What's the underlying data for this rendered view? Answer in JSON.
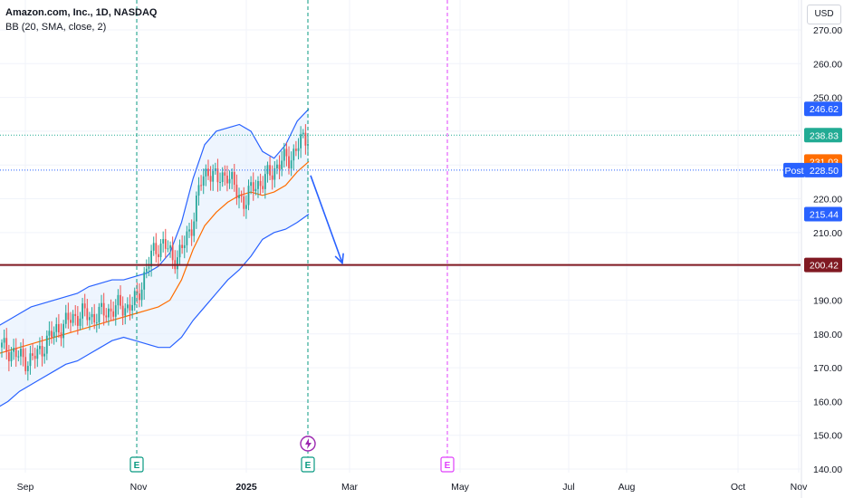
{
  "header": {
    "title": "Amazon.com, Inc., 1D, NASDAQ",
    "indicator": "BB (20, SMA, close, 2)",
    "currency": "USD"
  },
  "colors": {
    "up": "#26a69a",
    "down": "#ef5350",
    "band": "#2962ff",
    "basis": "#ff6d00",
    "band_fill": "#e3effd",
    "support": "#801922",
    "arrow": "#2962ff",
    "earnings_past": "#089981",
    "earnings_future": "#e040fb",
    "last_price": "#22ab94"
  },
  "chart_data": {
    "type": "candlestick",
    "y_range": [
      137,
      275
    ],
    "y_ticks": [
      "270.00",
      "260.00",
      "250.00",
      "240.00",
      "230.00",
      "220.00",
      "210.00",
      "200.00",
      "190.00",
      "180.00",
      "170.00",
      "160.00",
      "150.00",
      "140.00"
    ],
    "y_tick_values": [
      270,
      260,
      250,
      240,
      230,
      220,
      210,
      200,
      190,
      180,
      170,
      160,
      150,
      140
    ],
    "x_ticks": [
      {
        "label": "Sep",
        "bold": false
      },
      {
        "label": "Nov",
        "bold": false
      },
      {
        "label": "2025",
        "bold": true
      },
      {
        "label": "Mar",
        "bold": false
      },
      {
        "label": "May",
        "bold": false
      },
      {
        "label": "Jul",
        "bold": false
      },
      {
        "label": "Aug",
        "bold": false
      },
      {
        "label": "Oct",
        "bold": false
      },
      {
        "label": "Nov",
        "bold": false
      }
    ],
    "price_labels": [
      {
        "value": 246.62,
        "text": "246.62",
        "kind": "upper_band"
      },
      {
        "value": 238.83,
        "text": "238.83",
        "kind": "last_price"
      },
      {
        "value": 231.03,
        "text": "231.03",
        "kind": "basis"
      },
      {
        "value": 228.5,
        "text": "228.50",
        "kind": "post_market"
      },
      {
        "value": 215.44,
        "text": "215.44",
        "kind": "lower_band"
      },
      {
        "value": 200.42,
        "text": "200.42",
        "kind": "support"
      }
    ],
    "post_market_label": "Post",
    "support_level": 200.42,
    "projection": {
      "from_value": 228.5,
      "to_value": 200.42
    },
    "bollinger_upper": [
      182,
      184,
      186,
      188,
      189,
      190,
      191,
      192,
      194,
      195,
      196,
      196,
      197,
      198,
      200,
      204,
      213,
      226,
      236,
      240,
      241,
      242,
      240,
      234,
      232,
      236,
      243,
      246.6
    ],
    "bollinger_basis": [
      174,
      175,
      176,
      177,
      178,
      179,
      180,
      181,
      182,
      183,
      184,
      185,
      186,
      187,
      188,
      190,
      196,
      205,
      212,
      216,
      219,
      221,
      222,
      221,
      222,
      224,
      228,
      231.03
    ],
    "bollinger_lower": [
      158,
      160,
      163,
      165,
      167,
      169,
      171,
      172,
      174,
      176,
      178,
      179,
      178,
      177,
      176,
      176,
      179,
      184,
      188,
      192,
      196,
      199,
      203,
      208,
      210,
      211,
      213,
      215.44
    ],
    "close_series": [
      176,
      175,
      173,
      172,
      174,
      178,
      181,
      183,
      185,
      186,
      185,
      186,
      187,
      188,
      188,
      190,
      199,
      205,
      207,
      202,
      205,
      211,
      224,
      229,
      225,
      228,
      222,
      219,
      224,
      225,
      228,
      231,
      232,
      236,
      238.83
    ],
    "earnings": [
      {
        "label": "E",
        "kind": "past"
      },
      {
        "label": "E",
        "kind": "past"
      },
      {
        "label": "E",
        "kind": "future"
      }
    ]
  }
}
